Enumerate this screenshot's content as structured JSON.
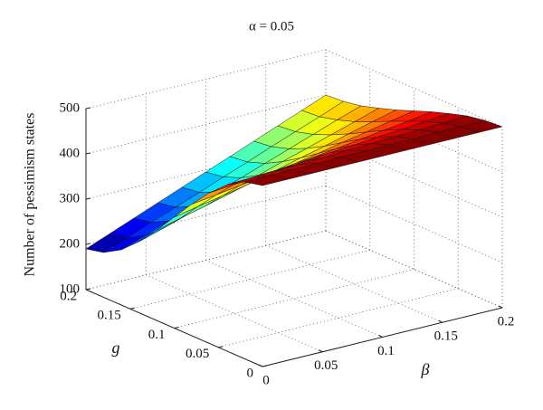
{
  "chart_data": {
    "type": "surface",
    "title": "α = 0.05",
    "x_label": "β",
    "y_label": "g",
    "z_label": "Number of pessimism states",
    "x": [
      0,
      0.02,
      0.04,
      0.06,
      0.08,
      0.1,
      0.12,
      0.14,
      0.16,
      0.18,
      0.2
    ],
    "y": [
      0,
      0.02,
      0.04,
      0.06,
      0.08,
      0.1,
      0.12,
      0.14,
      0.16,
      0.18,
      0.2
    ],
    "z": [
      [
        500,
        500,
        500,
        500,
        500,
        500,
        500,
        500,
        500,
        500,
        500
      ],
      [
        491,
        492,
        492,
        493,
        494,
        494,
        495,
        495,
        496,
        497,
        497
      ],
      [
        468,
        470,
        472,
        474,
        476,
        479,
        481,
        483,
        485,
        487,
        490
      ],
      [
        433,
        438,
        442,
        447,
        451,
        456,
        460,
        465,
        469,
        474,
        478
      ],
      [
        391,
        398,
        406,
        413,
        420,
        428,
        435,
        443,
        450,
        457,
        465
      ],
      [
        345,
        356,
        366,
        377,
        387,
        398,
        408,
        419,
        429,
        440,
        450
      ],
      [
        299,
        313,
        326,
        340,
        354,
        367,
        381,
        394,
        408,
        422,
        435
      ],
      [
        257,
        273,
        290,
        306,
        323,
        339,
        356,
        372,
        389,
        405,
        422
      ],
      [
        222,
        241,
        260,
        279,
        298,
        316,
        335,
        354,
        373,
        392,
        410
      ],
      [
        199,
        219,
        240,
        260,
        280,
        301,
        321,
        342,
        362,
        382,
        403
      ],
      [
        190,
        211,
        232,
        253,
        274,
        295,
        316,
        337,
        358,
        379,
        400
      ]
    ],
    "xlim": [
      0,
      0.2
    ],
    "ylim": [
      0,
      0.2
    ],
    "zlim": [
      100,
      500
    ],
    "xticks": [
      0,
      0.05,
      0.1,
      0.15,
      0.2
    ],
    "yticks": [
      0,
      0.05,
      0.1,
      0.15,
      0.2
    ],
    "zticks": [
      100,
      200,
      300,
      400,
      500
    ],
    "colormap": "jet",
    "grid": true
  }
}
